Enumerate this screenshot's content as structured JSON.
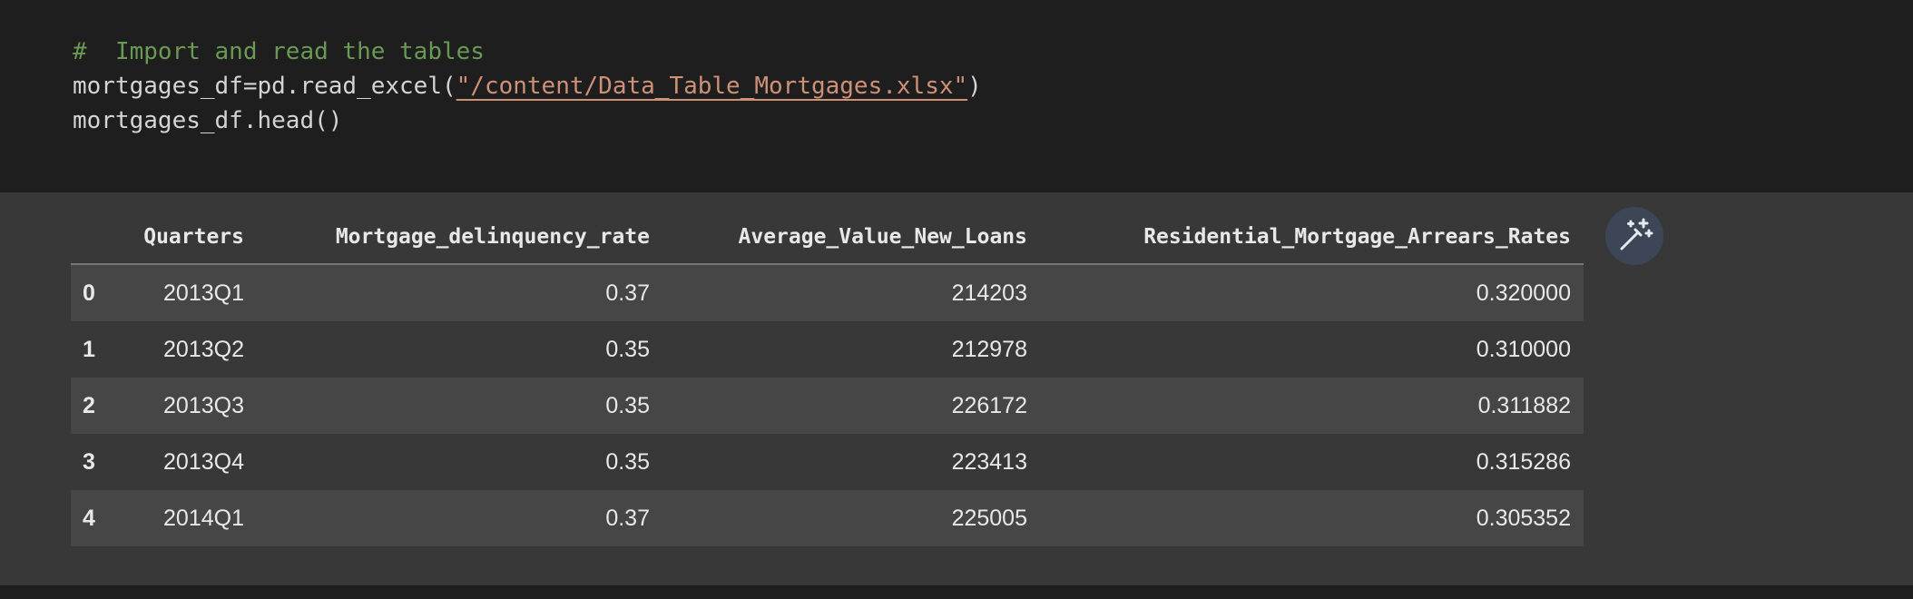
{
  "code": {
    "comment": "#  Import and read the tables",
    "line_2": [
      "mortgages_df=pd.read_excel(",
      "\"/content/Data_Table_Mortgages.xlsx\"",
      ")"
    ],
    "line_3": "mortgages_df.head()"
  },
  "table": {
    "columns": [
      "Quarters",
      "Mortgage_delinquency_rate",
      "Average_Value_New_Loans",
      "Residential_Mortgage_Arrears_Rates"
    ],
    "rows": [
      [
        "0",
        "2013Q1",
        "0.37",
        "214203",
        "0.320000"
      ],
      [
        "1",
        "2013Q2",
        "0.35",
        "212978",
        "0.310000"
      ],
      [
        "2",
        "2013Q3",
        "0.35",
        "226172",
        "0.311882"
      ],
      [
        "3",
        "2013Q4",
        "0.35",
        "223413",
        "0.315286"
      ],
      [
        "4",
        "2014Q1",
        "0.37",
        "225005",
        "0.305352"
      ]
    ]
  }
}
